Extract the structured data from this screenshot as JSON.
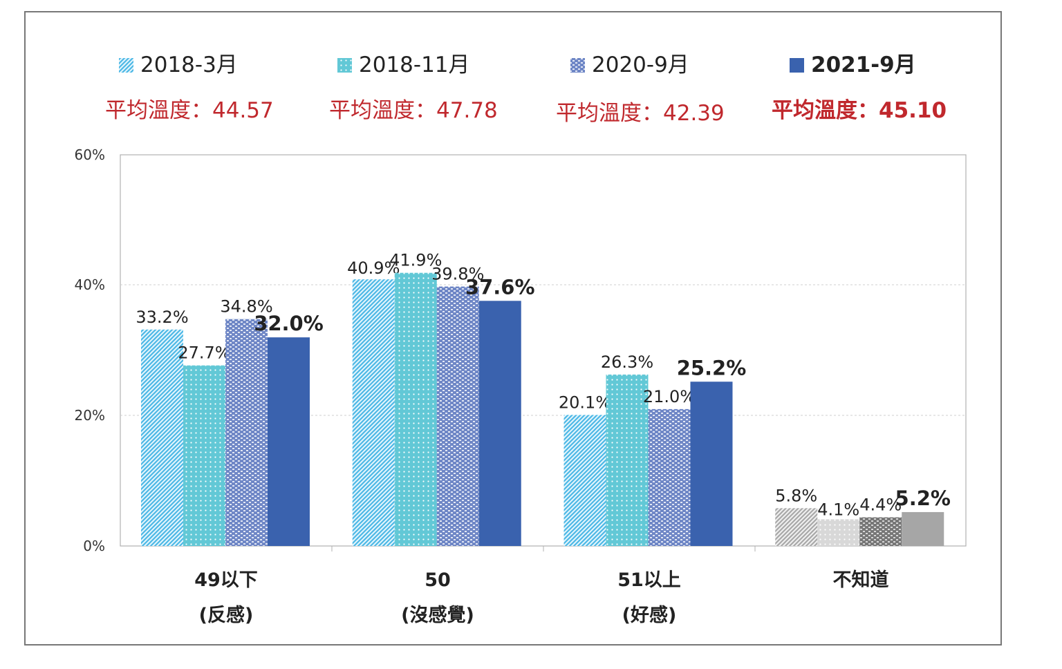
{
  "colors": {
    "s2018_3": "#4cb8e6",
    "s2018_11": "#62c8d6",
    "s2020_9": "#6f87c6",
    "s2021_9": "#3a62ae",
    "unknown_2018_3": "#a8a8a8",
    "unknown_2018_11": "#d8d8d8",
    "unknown_2020_9": "#777777",
    "unknown_2021_9": "#a6a6a6",
    "avg_text": "#c0282d",
    "bold_value_text": "#3a62ae"
  },
  "chart_data": {
    "type": "bar",
    "categories": [
      {
        "line1": "49以下",
        "line2": "(反感)"
      },
      {
        "line1": "50",
        "line2": "(沒感覺)"
      },
      {
        "line1": "51以上",
        "line2": "(好感)"
      },
      {
        "line1": "不知道",
        "line2": ""
      }
    ],
    "series": [
      {
        "name": "2018-3月",
        "average": "平均溫度：44.57",
        "values": [
          33.2,
          40.9,
          20.1,
          5.8
        ],
        "labels": [
          "33.2%",
          "40.9%",
          "20.1%",
          "5.8%"
        ]
      },
      {
        "name": "2018-11月",
        "average": "平均溫度：47.78",
        "values": [
          27.7,
          41.9,
          26.3,
          4.1
        ],
        "labels": [
          "27.7%",
          "41.9%",
          "26.3%",
          "4.1%"
        ]
      },
      {
        "name": "2020-9月",
        "average": "平均溫度：42.39",
        "values": [
          34.8,
          39.8,
          21.0,
          4.4
        ],
        "labels": [
          "34.8%",
          "39.8%",
          "21.0%",
          "4.4%"
        ]
      },
      {
        "name": "2021-9月",
        "average": "平均溫度：45.10",
        "values": [
          32.0,
          37.6,
          25.2,
          5.2
        ],
        "labels": [
          "32.0%",
          "37.6%",
          "25.2%",
          "5.2%"
        ]
      }
    ],
    "yticks": [
      "0%",
      "20%",
      "40%",
      "60%"
    ],
    "ylim": [
      0,
      60
    ],
    "grid": true,
    "legend_position": "top"
  }
}
